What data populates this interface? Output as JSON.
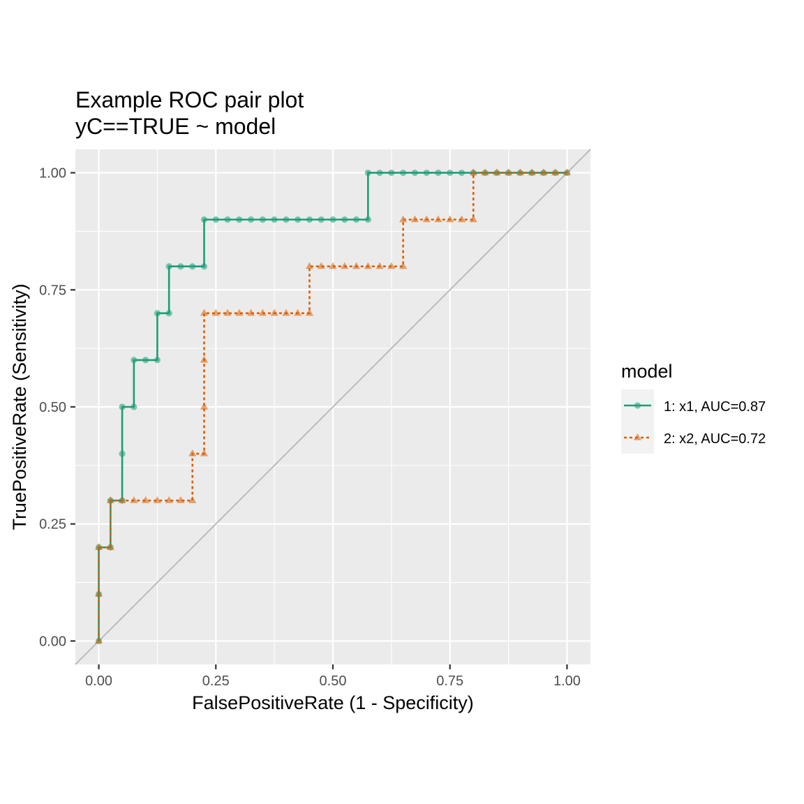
{
  "chart_data": {
    "type": "line",
    "title": "Example ROC pair plot",
    "subtitle": "yC==TRUE ~ model",
    "xlabel": "FalsePositiveRate (1 - Specificity)",
    "ylabel": "TruePositiveRate (Sensitivity)",
    "xlim": [
      -0.05,
      1.05
    ],
    "ylim": [
      -0.05,
      1.05
    ],
    "x_ticks": [
      0,
      0.25,
      0.5,
      0.75,
      1
    ],
    "y_ticks": [
      0,
      0.25,
      0.5,
      0.75,
      1
    ],
    "x_tick_labels": [
      "0.00",
      "0.25",
      "0.50",
      "0.75",
      "1.00"
    ],
    "y_tick_labels": [
      "0.00",
      "0.25",
      "0.50",
      "0.75",
      "1.00"
    ],
    "grid": true,
    "reference_line": {
      "x": [
        -0.05,
        1.05
      ],
      "y": [
        -0.05,
        1.05
      ],
      "color": "#bebebe"
    },
    "legend": {
      "title": "model",
      "position": "right"
    },
    "series": [
      {
        "name": "1: x1, AUC=0.87",
        "color": "#1b9e77",
        "line_style": "solid",
        "marker": "circle",
        "x": [
          0,
          0,
          0,
          0.025,
          0.025,
          0.05,
          0.05,
          0.05,
          0.075,
          0.075,
          0.1,
          0.125,
          0.125,
          0.15,
          0.15,
          0.175,
          0.2,
          0.225,
          0.225,
          0.25,
          0.275,
          0.3,
          0.325,
          0.35,
          0.375,
          0.4,
          0.425,
          0.45,
          0.475,
          0.5,
          0.525,
          0.55,
          0.575,
          0.575,
          0.6,
          0.625,
          0.65,
          0.675,
          0.7,
          0.725,
          0.75,
          0.775,
          0.8,
          0.825,
          0.85,
          0.875,
          0.9,
          0.925,
          0.95,
          0.975,
          1
        ],
        "y": [
          0,
          0.1,
          0.2,
          0.2,
          0.3,
          0.3,
          0.4,
          0.5,
          0.5,
          0.6,
          0.6,
          0.6,
          0.7,
          0.7,
          0.8,
          0.8,
          0.8,
          0.8,
          0.9,
          0.9,
          0.9,
          0.9,
          0.9,
          0.9,
          0.9,
          0.9,
          0.9,
          0.9,
          0.9,
          0.9,
          0.9,
          0.9,
          0.9,
          1,
          1,
          1,
          1,
          1,
          1,
          1,
          1,
          1,
          1,
          1,
          1,
          1,
          1,
          1,
          1,
          1,
          1
        ]
      },
      {
        "name": "2: x2, AUC=0.72",
        "color": "#d95f02",
        "line_style": "dashed",
        "marker": "triangle",
        "x": [
          0,
          0,
          0,
          0.025,
          0.025,
          0.05,
          0.075,
          0.1,
          0.125,
          0.15,
          0.175,
          0.2,
          0.2,
          0.225,
          0.225,
          0.225,
          0.225,
          0.25,
          0.275,
          0.3,
          0.325,
          0.35,
          0.375,
          0.4,
          0.425,
          0.45,
          0.45,
          0.475,
          0.5,
          0.525,
          0.55,
          0.575,
          0.6,
          0.625,
          0.65,
          0.65,
          0.675,
          0.7,
          0.725,
          0.75,
          0.775,
          0.8,
          0.8,
          0.825,
          0.85,
          0.875,
          0.9,
          0.925,
          0.95,
          0.975,
          1
        ],
        "y": [
          0,
          0.1,
          0.2,
          0.2,
          0.3,
          0.3,
          0.3,
          0.3,
          0.3,
          0.3,
          0.3,
          0.3,
          0.4,
          0.4,
          0.5,
          0.6,
          0.7,
          0.7,
          0.7,
          0.7,
          0.7,
          0.7,
          0.7,
          0.7,
          0.7,
          0.7,
          0.8,
          0.8,
          0.8,
          0.8,
          0.8,
          0.8,
          0.8,
          0.8,
          0.8,
          0.9,
          0.9,
          0.9,
          0.9,
          0.9,
          0.9,
          0.9,
          1,
          1,
          1,
          1,
          1,
          1,
          1,
          1,
          1
        ]
      }
    ]
  }
}
